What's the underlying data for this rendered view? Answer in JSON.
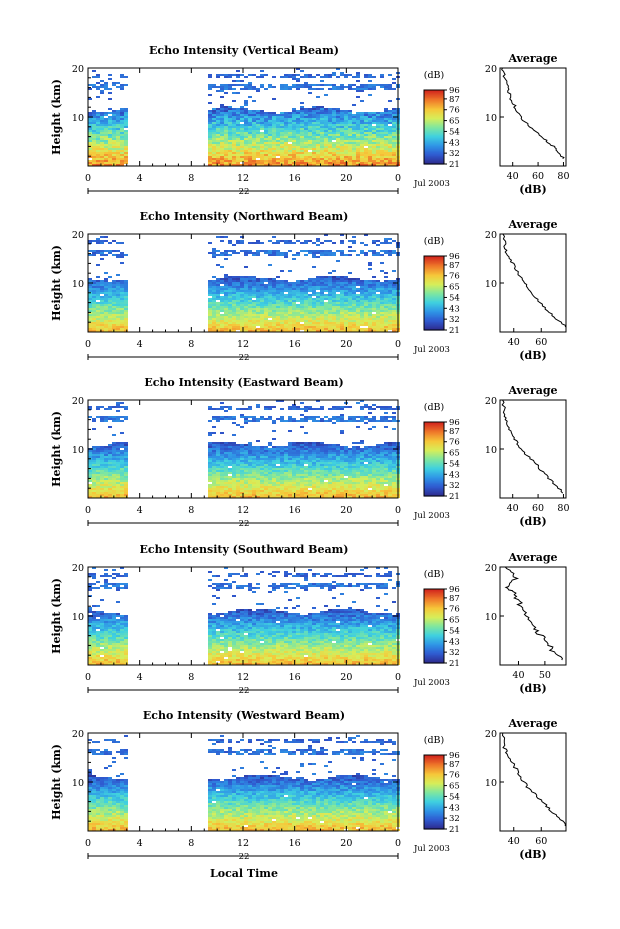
{
  "figure": {
    "xlabel": "Local Time",
    "panels": [
      {
        "title": "Echo Intensity (Vertical Beam)",
        "ylabel": "Height (km)",
        "yticks": [
          "20",
          "10"
        ],
        "xticks": [
          "0",
          "4",
          "8",
          "12",
          "16",
          "20",
          "0"
        ],
        "day": "22",
        "date": "Jul 2003",
        "cb_unit": "(dB)",
        "cb_ticks": [
          "96",
          "87",
          "76",
          "65",
          "54",
          "43",
          "32",
          "21"
        ],
        "avg_title": "Average",
        "avg_xlabel": "(dB)",
        "avg_yticks": [
          "20",
          "10"
        ],
        "avg_xticks": [
          "40",
          "60",
          "80"
        ],
        "avg_range": [
          30,
          82
        ],
        "seed": 11
      },
      {
        "title": "Echo Intensity (Northward Beam)",
        "ylabel": "Height (km)",
        "yticks": [
          "20",
          "10"
        ],
        "xticks": [
          "0",
          "4",
          "8",
          "12",
          "16",
          "20",
          "0"
        ],
        "day": "22",
        "date": "Jul 2003",
        "cb_unit": "(dB)",
        "cb_ticks": [
          "96",
          "87",
          "76",
          "65",
          "54",
          "43",
          "32",
          "21"
        ],
        "avg_title": "Average",
        "avg_xlabel": "(dB)",
        "avg_yticks": [
          "20",
          "10"
        ],
        "avg_xticks": [
          "40",
          "60"
        ],
        "avg_range": [
          30,
          78
        ],
        "seed": 23
      },
      {
        "title": "Echo Intensity (Eastward Beam)",
        "ylabel": "Height (km)",
        "yticks": [
          "20",
          "10"
        ],
        "xticks": [
          "0",
          "4",
          "8",
          "12",
          "16",
          "20",
          "0"
        ],
        "day": "22",
        "date": "Jul 2003",
        "cb_unit": "(dB)",
        "cb_ticks": [
          "96",
          "87",
          "76",
          "65",
          "54",
          "43",
          "32",
          "21"
        ],
        "avg_title": "Average",
        "avg_xlabel": "(dB)",
        "avg_yticks": [
          "20",
          "10"
        ],
        "avg_xticks": [
          "40",
          "60",
          "80"
        ],
        "avg_range": [
          30,
          82
        ],
        "seed": 37
      },
      {
        "title": "Echo Intensity (Southward Beam)",
        "ylabel": "Height (km)",
        "yticks": [
          "20",
          "10"
        ],
        "xticks": [
          "0",
          "4",
          "8",
          "12",
          "16",
          "20",
          "0"
        ],
        "day": "22",
        "date": "Jul 2003",
        "cb_unit": "(dB)",
        "cb_ticks": [
          "96",
          "87",
          "76",
          "65",
          "54",
          "43",
          "32",
          "21"
        ],
        "avg_title": "Average",
        "avg_xlabel": "(dB)",
        "avg_yticks": [
          "20",
          "10"
        ],
        "avg_xticks": [
          "40",
          "50"
        ],
        "avg_range": [
          33,
          58
        ],
        "seed": 41
      },
      {
        "title": "Echo Intensity (Westward Beam)",
        "ylabel": "Height (km)",
        "yticks": [
          "20",
          "10"
        ],
        "xticks": [
          "0",
          "4",
          "8",
          "12",
          "16",
          "20",
          "0"
        ],
        "day": "22",
        "date": "Jul 2003",
        "cb_unit": "(dB)",
        "cb_ticks": [
          "96",
          "87",
          "76",
          "65",
          "54",
          "43",
          "32",
          "21"
        ],
        "avg_title": "Average",
        "avg_xlabel": "(dB)",
        "avg_yticks": [
          "20",
          "10"
        ],
        "avg_xticks": [
          "40",
          "60"
        ],
        "avg_range": [
          30,
          78
        ],
        "seed": 53
      }
    ]
  },
  "chart_data": {
    "type": "heatmap",
    "x_units": "local time (h)",
    "xlim": [
      0,
      24
    ],
    "ylim": [
      0,
      20
    ],
    "data_gap": [
      3.0,
      9.2
    ],
    "colorbar_range": [
      21,
      96
    ],
    "colorscale": [
      "#2e2a8c",
      "#2f5ad0",
      "#2f95e6",
      "#3fd0e0",
      "#7ee6a0",
      "#d6ee5a",
      "#f6c83a",
      "#ef7a2a",
      "#d42a1e"
    ],
    "average_profiles": [
      {
        "name": "Vertical",
        "points": [
          [
            80,
            1.5
          ],
          [
            76,
            3
          ],
          [
            70,
            4.5
          ],
          [
            62,
            6
          ],
          [
            54,
            8
          ],
          [
            46,
            10
          ],
          [
            42,
            12
          ],
          [
            38,
            14
          ],
          [
            36,
            16
          ],
          [
            34,
            18
          ],
          [
            32,
            20
          ]
        ]
      },
      {
        "name": "Northward",
        "points": [
          [
            78,
            1
          ],
          [
            70,
            3
          ],
          [
            62,
            5
          ],
          [
            56,
            7
          ],
          [
            50,
            9
          ],
          [
            45,
            11
          ],
          [
            41,
            13
          ],
          [
            37,
            15
          ],
          [
            34,
            17
          ],
          [
            32,
            20
          ]
        ]
      },
      {
        "name": "Eastward",
        "points": [
          [
            80,
            1
          ],
          [
            72,
            3
          ],
          [
            65,
            5
          ],
          [
            58,
            7
          ],
          [
            50,
            9
          ],
          [
            44,
            11
          ],
          [
            40,
            13
          ],
          [
            36,
            15
          ],
          [
            34,
            17
          ],
          [
            32,
            20
          ]
        ]
      },
      {
        "name": "Southward",
        "points": [
          [
            57,
            1
          ],
          [
            53,
            3
          ],
          [
            50,
            5
          ],
          [
            47,
            7
          ],
          [
            44,
            9
          ],
          [
            42,
            11
          ],
          [
            40,
            13
          ],
          [
            38,
            15
          ],
          [
            36,
            16
          ],
          [
            39,
            18
          ],
          [
            35,
            20
          ]
        ]
      },
      {
        "name": "Westward",
        "points": [
          [
            78,
            1
          ],
          [
            72,
            3
          ],
          [
            64,
            5
          ],
          [
            57,
            7
          ],
          [
            50,
            9
          ],
          [
            45,
            11
          ],
          [
            41,
            13
          ],
          [
            37,
            15
          ],
          [
            33,
            17
          ],
          [
            32,
            20
          ]
        ]
      }
    ]
  }
}
